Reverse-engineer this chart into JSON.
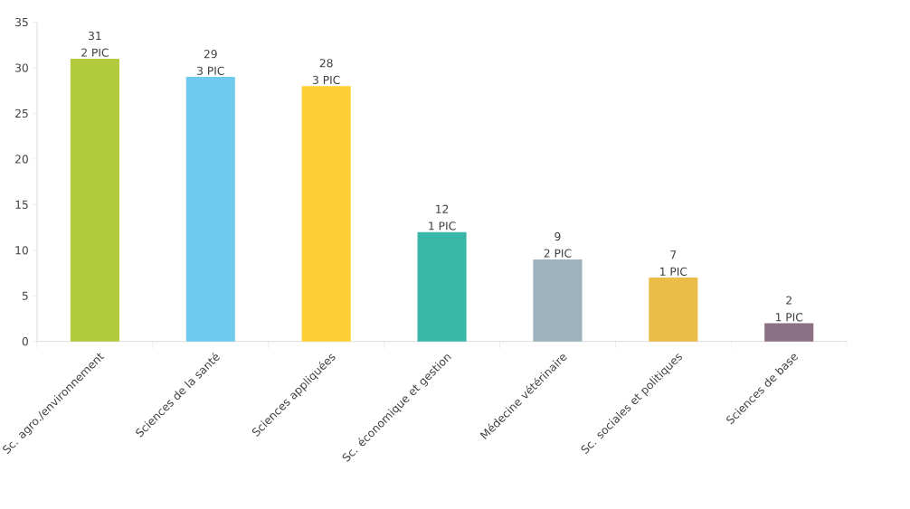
{
  "chart_data": {
    "type": "bar",
    "categories": [
      "Sc. agro./environnement",
      "Sciences de la santé",
      "Sciences appliquées",
      "Sc. économique et gestion",
      "Médecine vétérinaire",
      "Sc. sociales et politiques",
      "Sciences de base"
    ],
    "values": [
      31,
      29,
      28,
      12,
      9,
      7,
      2
    ],
    "colors": [
      "#b2cb3c",
      "#6fcaee",
      "#ffd035",
      "#38b6a8",
      "#9eb2bd",
      "#eabd48",
      "#8c7185"
    ],
    "ylim": [
      0,
      35
    ],
    "yticks": [
      0,
      5,
      10,
      15,
      20,
      25,
      30,
      35
    ],
    "data_labels": true,
    "annotations": [
      {
        "text": "2 PIC",
        "x": "Sc. agro./environnement",
        "y": 31
      },
      {
        "text": "3 PIC",
        "x": "Sciences de la santé",
        "y": 29
      },
      {
        "text": "3 PIC",
        "x": "Sciences appliquées",
        "y": 28
      },
      {
        "text": "1 PIC",
        "x": "Sc. économique et gestion",
        "y": 12
      },
      {
        "text": "2 PIC",
        "x": "Médecine vétérinaire",
        "y": 9
      },
      {
        "text": "1 PIC",
        "x": "Sc. sociales et politiques",
        "y": 7
      },
      {
        "text": "1 PIC",
        "x": "Sciences de base",
        "y": 2
      }
    ]
  }
}
